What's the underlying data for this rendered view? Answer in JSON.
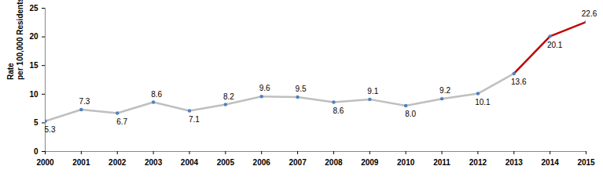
{
  "chart_data": {
    "type": "line",
    "y_label": "Rate\nper 100,000 Residents",
    "x": [
      2000,
      2001,
      2002,
      2003,
      2004,
      2005,
      2006,
      2007,
      2008,
      2009,
      2010,
      2011,
      2012,
      2013,
      2014,
      2015
    ],
    "values": [
      5.3,
      7.3,
      6.7,
      8.6,
      7.1,
      8.2,
      9.6,
      9.5,
      8.6,
      9.1,
      8.0,
      9.2,
      10.1,
      13.6,
      20.1,
      22.6
    ],
    "value_labels": [
      "5.3",
      "7.3",
      "6.7",
      "8.6",
      "7.1",
      "8.2",
      "9.6",
      "9.5",
      "8.6",
      "9.1",
      "8.0",
      "9.2",
      "10.1",
      "13.6",
      "20.1",
      "22.6"
    ],
    "colors": [
      "#bfbfbf",
      "#bfbfbf",
      "#bfbfbf",
      "#bfbfbf",
      "#bfbfbf",
      "#bfbfbf",
      "#bfbfbf",
      "#bfbfbf",
      "#bfbfbf",
      "#bfbfbf",
      "#bfbfbf",
      "#bfbfbf",
      "#bfbfbf",
      "#bfbfbf",
      "#c00000",
      "#c00000"
    ],
    "marker": "circle",
    "xlim": [
      2000,
      2015
    ],
    "xticks": [
      2000,
      2001,
      2002,
      2003,
      2004,
      2005,
      2006,
      2007,
      2008,
      2009,
      2010,
      2011,
      2012,
      2013,
      2014,
      2015
    ],
    "ylim": [
      0,
      25
    ],
    "yticks": [
      0,
      5,
      10,
      15,
      20,
      25
    ],
    "grid": false,
    "data_labels": true
  }
}
